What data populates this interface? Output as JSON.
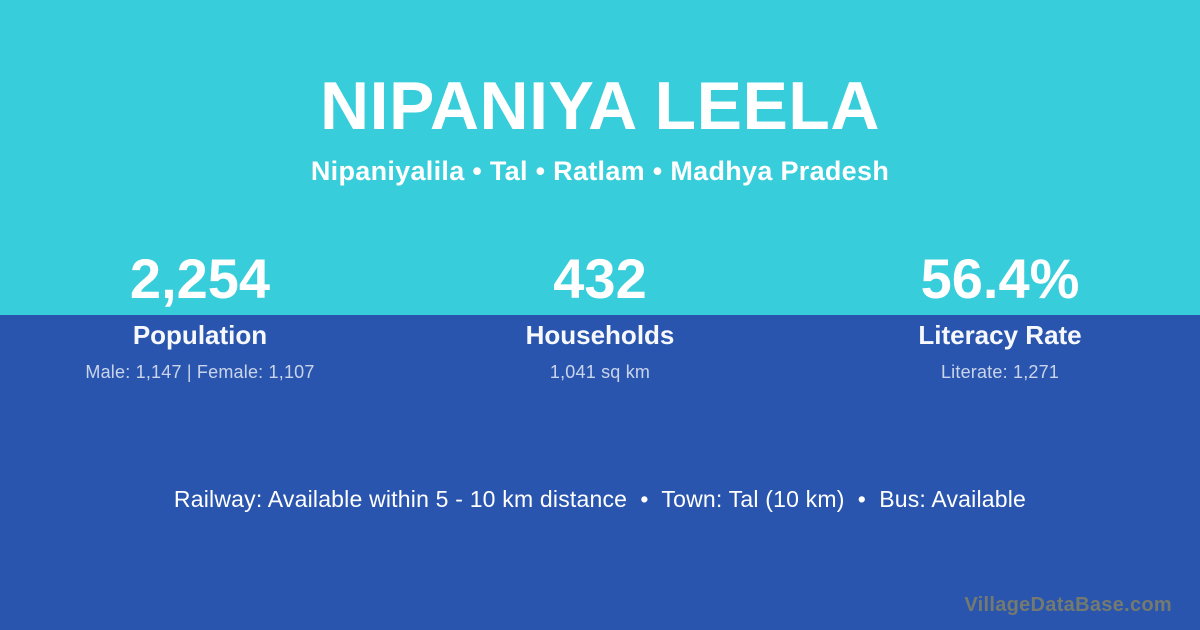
{
  "page": {
    "title": "NIPANIYA LEELA",
    "subtitle": "Nipaniyalila • Tal • Ratlam • Madhya Pradesh"
  },
  "stats": [
    {
      "value": "2,254",
      "label": "Population",
      "detail": "Male: 1,147 | Female: 1,107"
    },
    {
      "value": "432",
      "label": "Households",
      "detail": "1,041 sq km"
    },
    {
      "value": "56.4%",
      "label": "Literacy Rate",
      "detail": "Literate: 1,271"
    }
  ],
  "footer": {
    "amenities": "Railway: Available within 5 - 10 km distance  •  Town: Tal (10 km)  •  Bus: Available",
    "watermark": "VillageDataBase.com"
  },
  "colors": {
    "top_bg": "#37cdda",
    "bottom_bg": "#2a55ae",
    "text": "#ffffff"
  }
}
